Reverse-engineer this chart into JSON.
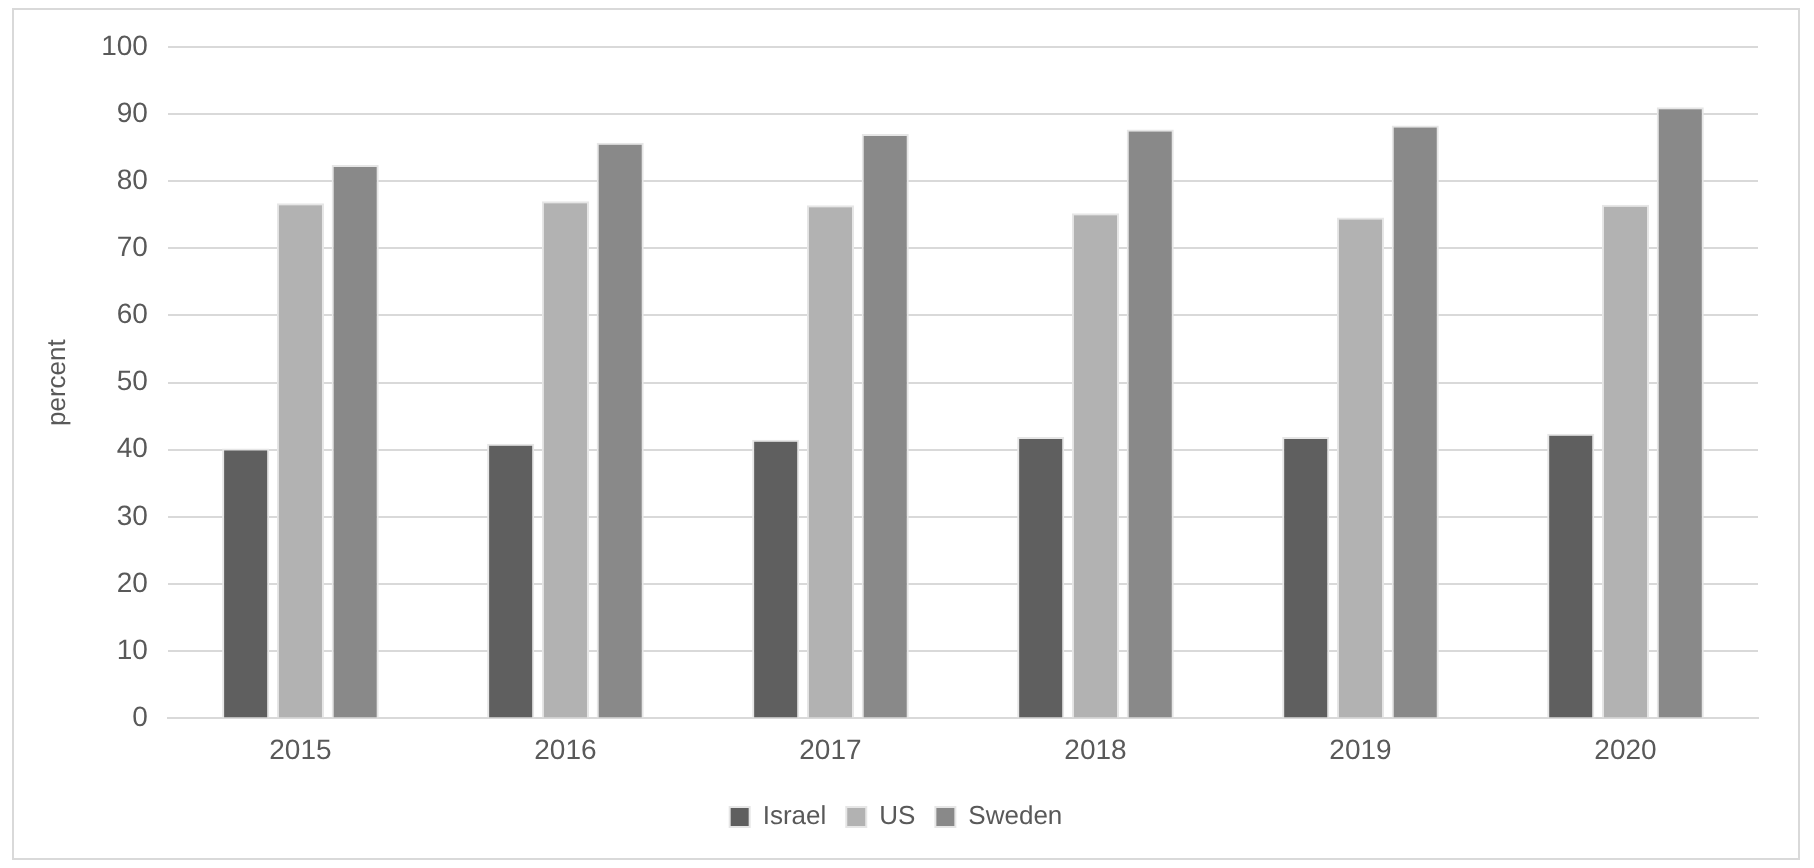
{
  "chart_data": {
    "type": "bar",
    "ylabel": "percent",
    "categories": [
      "2015",
      "2016",
      "2017",
      "2018",
      "2019",
      "2020"
    ],
    "series": [
      {
        "name": "Israel",
        "color": "#5f5f5f",
        "values": [
          40.2,
          40.9,
          41.5,
          41.9,
          41.9,
          42.4
        ]
      },
      {
        "name": "US",
        "color": "#b2b2b2",
        "values": [
          76.7,
          77.0,
          76.4,
          75.2,
          74.6,
          76.5
        ]
      },
      {
        "name": "Sweden",
        "color": "#898989",
        "values": [
          82.4,
          85.7,
          87.0,
          87.7,
          88.3,
          91.0
        ]
      }
    ],
    "ylim": [
      0,
      100
    ],
    "yticks": [
      0,
      10,
      20,
      30,
      40,
      50,
      60,
      70,
      80,
      90,
      100
    ],
    "grid": "y",
    "legend": "bottom"
  }
}
